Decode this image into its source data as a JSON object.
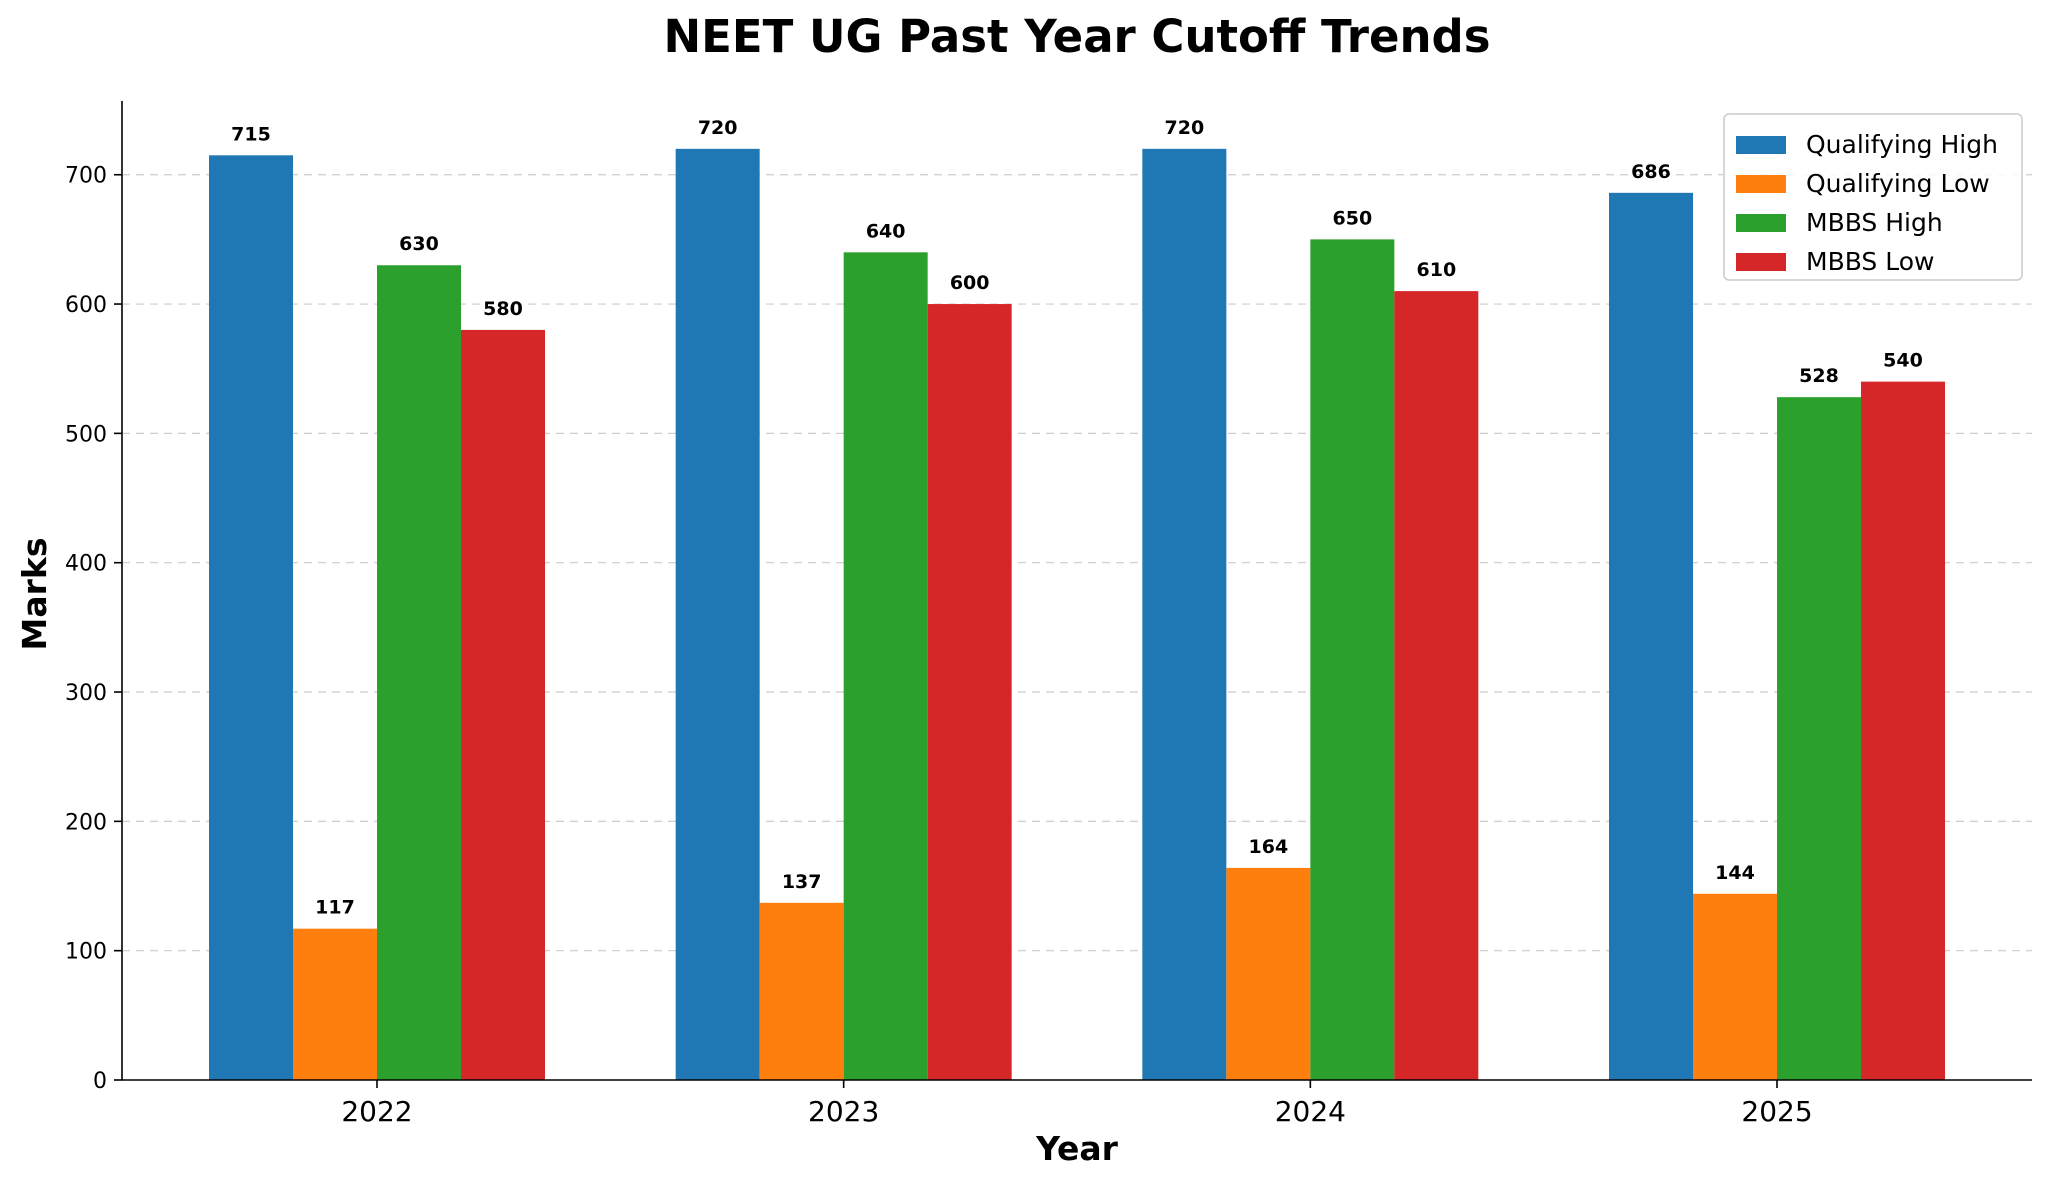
{
  "chart_data": {
    "type": "bar",
    "title": "NEET UG Past Year Cutoff Trends",
    "xlabel": "Year",
    "ylabel": "Marks",
    "categories": [
      "2022",
      "2023",
      "2024",
      "2025"
    ],
    "ylim": [
      0,
      757
    ],
    "yticks": [
      0,
      100,
      200,
      300,
      400,
      500,
      600,
      700
    ],
    "grid": "horizontal dashed",
    "legend_position": "top-right",
    "series": [
      {
        "name": "Qualifying High",
        "color": "#1f77b4",
        "values": [
          715,
          720,
          720,
          686
        ]
      },
      {
        "name": "Qualifying Low",
        "color": "#ff7f0e",
        "values": [
          117,
          137,
          164,
          144
        ]
      },
      {
        "name": "MBBS High",
        "color": "#2ca02c",
        "values": [
          630,
          640,
          650,
          528
        ]
      },
      {
        "name": "MBBS Low",
        "color": "#d62728",
        "values": [
          580,
          600,
          610,
          540
        ]
      }
    ]
  }
}
